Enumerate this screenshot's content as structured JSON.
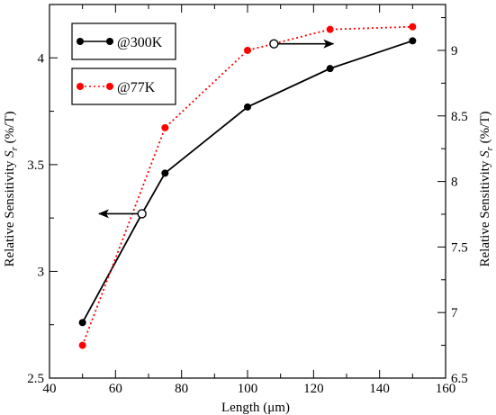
{
  "chart_data": {
    "type": "line",
    "xlabel_parts": [
      "Length (",
      "μ",
      "m)"
    ],
    "ylabel_left_parts": [
      "Relative Sensitivity ",
      "S",
      "r",
      " (%/T)"
    ],
    "ylabel_right_parts": [
      "Relative Sensitivity ",
      "S",
      "r",
      " (%/T)"
    ],
    "xlim": [
      40,
      160
    ],
    "ylim_left": [
      2.5,
      4.25
    ],
    "ylim_right": [
      6.5,
      9.35
    ],
    "x_ticks": [
      "40",
      "60",
      "80",
      "100",
      "120",
      "140",
      "160"
    ],
    "y_left_ticks": [
      "2.5",
      "3",
      "3.5",
      "4"
    ],
    "y_right_ticks": [
      "6.5",
      "7",
      "7.5",
      "8",
      "8.5",
      "9"
    ],
    "grid": false,
    "legend_position": "top-left",
    "series": [
      {
        "name": "@300K",
        "axis": "left",
        "color": "#000000",
        "line_style": "solid",
        "marker": "filled-circle",
        "x": [
          50,
          68,
          75,
          100,
          125,
          150
        ],
        "y": [
          2.76,
          3.27,
          3.46,
          3.77,
          3.95,
          4.08
        ]
      },
      {
        "name": "@77K",
        "axis": "right",
        "color": "#ff0000",
        "line_style": "dotted",
        "marker": "filled-circle",
        "x": [
          50,
          75,
          100,
          125,
          150
        ],
        "y": [
          6.75,
          8.41,
          9.0,
          9.16,
          9.18
        ]
      }
    ],
    "annotations": [
      {
        "name": "left-axis-arrow",
        "circle_x": 68,
        "circle_y": 3.27,
        "axis": "left",
        "to_x": 55,
        "direction": "left"
      },
      {
        "name": "right-axis-arrow",
        "circle_x": 108,
        "circle_y": 9.05,
        "axis": "right",
        "to_x": 126,
        "direction": "right"
      }
    ]
  }
}
